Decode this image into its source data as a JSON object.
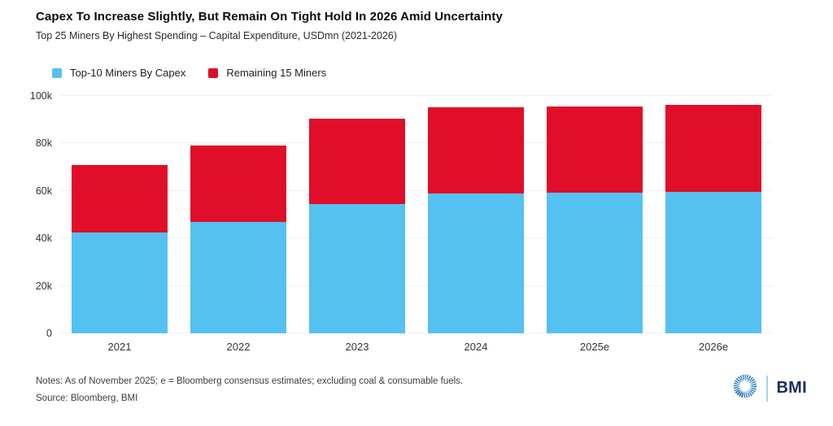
{
  "header": {
    "title": "Capex To Increase Slightly, But Remain On Tight Hold In 2026 Amid Uncertainty",
    "subtitle": "Top 25 Miners By Highest Spending – Capital Expenditure, USDmn (2021-2026)"
  },
  "chart_data": {
    "type": "bar",
    "stacked": true,
    "title": "Capex To Increase Slightly, But Remain On Tight Hold In 2026 Amid Uncertainty",
    "subtitle": "Top 25 Miners By Highest Spending – Capital Expenditure, USDmn (2021-2026)",
    "categories": [
      "2021",
      "2022",
      "2023",
      "2024",
      "2025e",
      "2026e"
    ],
    "series": [
      {
        "name": "Top-10 Miners By Capex",
        "color": "#55c1f0",
        "values": [
          42500,
          47000,
          54500,
          59000,
          59300,
          59700
        ]
      },
      {
        "name": "Remaining 15 Miners",
        "color": "#e00e28",
        "values": [
          28500,
          32000,
          36000,
          36300,
          36400,
          36500
        ]
      }
    ],
    "totals": [
      71000,
      79000,
      90500,
      95300,
      95700,
      96200
    ],
    "xlabel": "",
    "ylabel": "",
    "ylim": [
      0,
      100000
    ],
    "ytick_labels": [
      "0",
      "20k",
      "40k",
      "60k",
      "80k",
      "100k"
    ],
    "grid": "horizontal",
    "legend_position": "top-left"
  },
  "footer": {
    "notes": "Notes: As of November 2025; e = Bloomberg consensus estimates; excluding coal & consumable fuels.",
    "source": "Source: Bloomberg, BMI",
    "logo_text": "BMI",
    "logo_icon": "bmi-globe-icon",
    "logo_colors": {
      "icon_blue": "#2f7dc1",
      "icon_blue_light": "#5fa8d8",
      "divider_blue": "#a9d3ec",
      "text_navy": "#1b2d5e"
    }
  }
}
